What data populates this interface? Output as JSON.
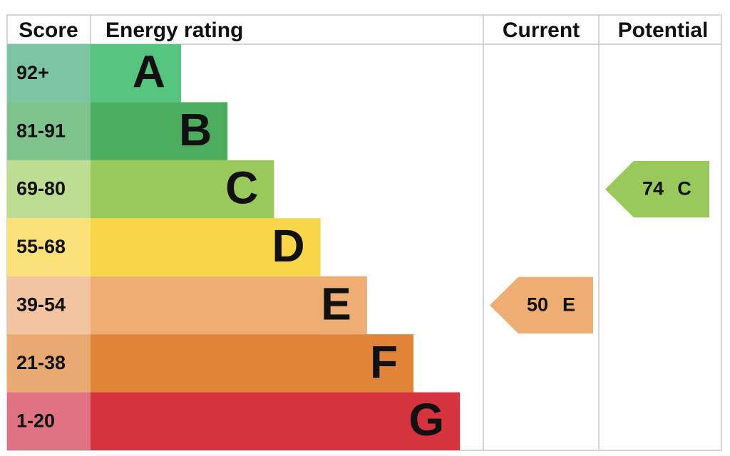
{
  "headers": {
    "score": "Score",
    "rating": "Energy rating",
    "current": "Current",
    "potential": "Potential"
  },
  "bands": [
    {
      "score": "92+",
      "letter": "A",
      "color": "#55c47e",
      "score_color": "#7dc5a2"
    },
    {
      "score": "81-91",
      "letter": "B",
      "color": "#4cad5e",
      "score_color": "#7ec38c"
    },
    {
      "score": "69-80",
      "letter": "C",
      "color": "#99c95a",
      "score_color": "#bddd93"
    },
    {
      "score": "55-68",
      "letter": "D",
      "color": "#f8d648",
      "score_color": "#fbe278"
    },
    {
      "score": "39-54",
      "letter": "E",
      "color": "#eead72",
      "score_color": "#f3c4a0"
    },
    {
      "score": "21-38",
      "letter": "F",
      "color": "#e0843a",
      "score_color": "#e9aa72"
    },
    {
      "score": "1-20",
      "letter": "G",
      "color": "#d5343f",
      "score_color": "#e07383"
    }
  ],
  "current": {
    "value": 50,
    "letter": "E"
  },
  "potential": {
    "value": 74,
    "letter": "C"
  }
}
